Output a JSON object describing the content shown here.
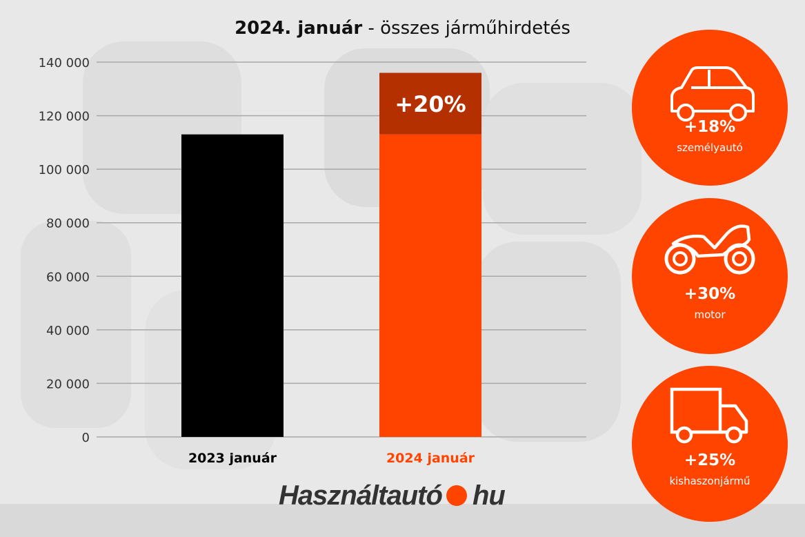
{
  "title": {
    "bold": "2024. január",
    "rest": " - összes járműhirdetés"
  },
  "chart_data": {
    "type": "bar",
    "title": "2024. január - összes járműhirdetés",
    "categories": [
      "2023 január",
      "2024 január"
    ],
    "values": [
      113000,
      136000
    ],
    "growth": {
      "base": 113000,
      "increase": 23000,
      "label": "+20%"
    },
    "ylim": [
      0,
      140000
    ],
    "yticks": [
      0,
      20000,
      40000,
      60000,
      80000,
      100000,
      120000,
      140000
    ],
    "ytick_labels": [
      "0",
      "20 000",
      "40 000",
      "60 000",
      "80 000",
      "100 000",
      "120 000",
      "140 000"
    ],
    "grid": true,
    "colors": {
      "2023": "#000000",
      "2024": "#ff4400",
      "increase": "#b53000"
    },
    "category_label_colors": [
      "#000000",
      "#ff4400"
    ]
  },
  "stats": [
    {
      "icon": "car-icon",
      "pct": "+18%",
      "label": "személyautó"
    },
    {
      "icon": "motorcycle-icon",
      "pct": "+30%",
      "label": "motor"
    },
    {
      "icon": "van-icon",
      "pct": "+25%",
      "label": "kishaszonjármű"
    }
  ],
  "logo": {
    "left": "Használtautó",
    "right": "hu",
    "dot_color": "#ff4400"
  }
}
